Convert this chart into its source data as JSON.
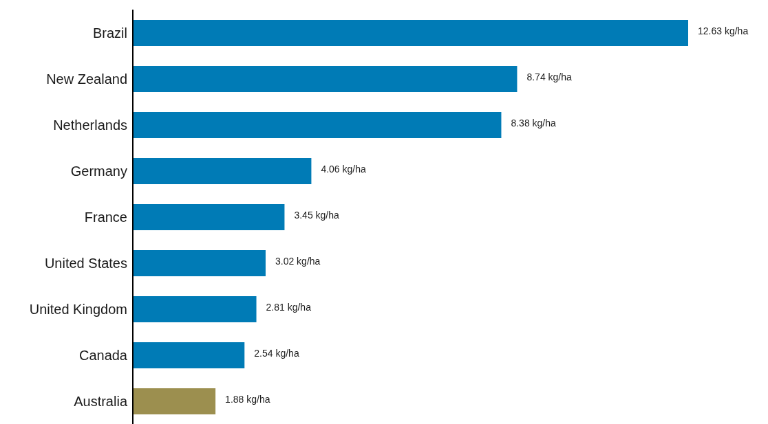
{
  "chart_data": {
    "type": "bar",
    "orientation": "horizontal",
    "categories": [
      "Brazil",
      "New Zealand",
      "Netherlands",
      "Germany",
      "France",
      "United States",
      "United Kingdom",
      "Canada",
      "Australia"
    ],
    "values": [
      12.63,
      8.74,
      8.38,
      4.06,
      3.45,
      3.02,
      2.81,
      2.54,
      1.88
    ],
    "colors": [
      "#007bb6",
      "#007bb6",
      "#007bb6",
      "#007bb6",
      "#007bb6",
      "#007bb6",
      "#007bb6",
      "#007bb6",
      "#9c8f4f"
    ],
    "value_labels": [
      "12.63 kg/ha",
      "8.74 kg/ha",
      "8.38 kg/ha",
      "4.06 kg/ha",
      "3.45 kg/ha",
      "3.02 kg/ha",
      "2.81 kg/ha",
      "2.54 kg/ha",
      "1.88 kg/ha"
    ],
    "grid": false,
    "legend": false,
    "tick_labels": "y"
  }
}
